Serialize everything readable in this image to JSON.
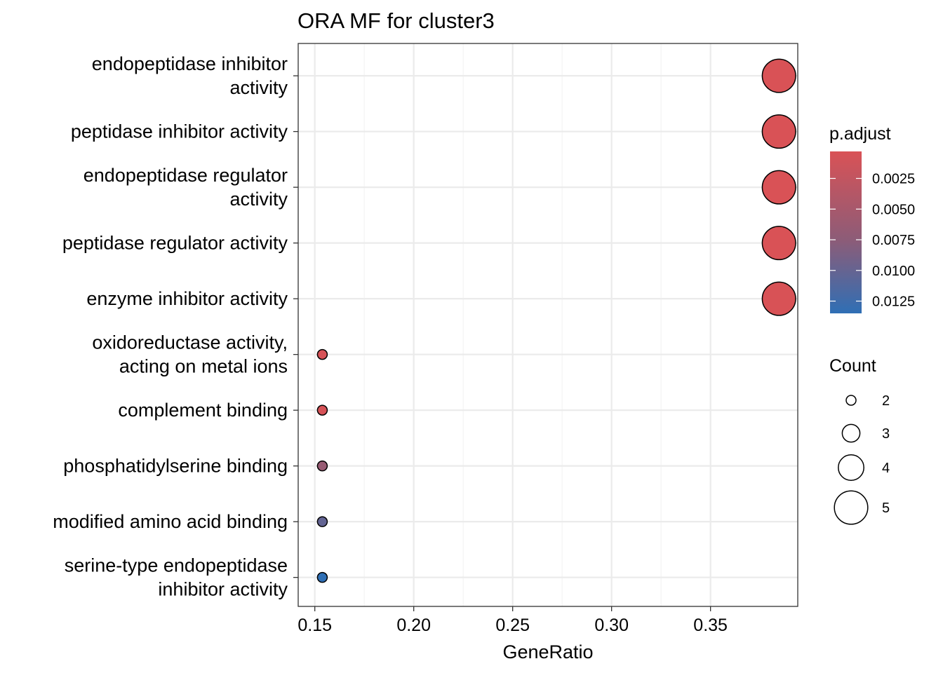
{
  "chart_data": {
    "type": "scatter",
    "title": "ORA MF for cluster3",
    "xlabel": "GeneRatio",
    "ylabel": "",
    "xlim": [
      0.1416,
      0.3941
    ],
    "xticks": [
      "0.15",
      "0.20",
      "0.25",
      "0.30",
      "0.35"
    ],
    "xtick_values": [
      0.15,
      0.2,
      0.25,
      0.3,
      0.35
    ],
    "grid": true,
    "categories": [
      [
        "endopeptidase inhibitor",
        "activity"
      ],
      [
        "peptidase inhibitor activity"
      ],
      [
        "endopeptidase regulator",
        "activity"
      ],
      [
        "peptidase regulator activity"
      ],
      [
        "enzyme inhibitor activity"
      ],
      [
        "oxidoreductase activity,",
        "acting on metal ions"
      ],
      [
        "complement binding"
      ],
      [
        "phosphatidylserine binding"
      ],
      [
        "modified amino acid binding"
      ],
      [
        "serine-type endopeptidase",
        "inhibitor activity"
      ]
    ],
    "points": [
      {
        "x": 0.3846,
        "count": 5,
        "padj": 0.0003
      },
      {
        "x": 0.3846,
        "count": 5,
        "padj": 0.0003
      },
      {
        "x": 0.3846,
        "count": 5,
        "padj": 0.0003
      },
      {
        "x": 0.3846,
        "count": 5,
        "padj": 0.0003
      },
      {
        "x": 0.3846,
        "count": 5,
        "padj": 0.0004
      },
      {
        "x": 0.1538,
        "count": 2,
        "padj": 0.0005
      },
      {
        "x": 0.1538,
        "count": 2,
        "padj": 0.0006
      },
      {
        "x": 0.1538,
        "count": 2,
        "padj": 0.0065
      },
      {
        "x": 0.1538,
        "count": 2,
        "padj": 0.0102
      },
      {
        "x": 0.1538,
        "count": 2,
        "padj": 0.0135
      }
    ],
    "color_legend": {
      "title": "p.adjust",
      "ticks": [
        "0.0025",
        "0.0050",
        "0.0075",
        "0.0100",
        "0.0125"
      ],
      "tick_values": [
        0.0025,
        0.005,
        0.0075,
        0.01,
        0.0125
      ],
      "min": 0.0003,
      "max": 0.0135,
      "low_color": "#D95256",
      "high_color": "#2F6FB5",
      "placement": "right"
    },
    "size_legend": {
      "title": "Count",
      "values": [
        "2",
        "3",
        "4",
        "5"
      ],
      "placement": "right"
    }
  }
}
